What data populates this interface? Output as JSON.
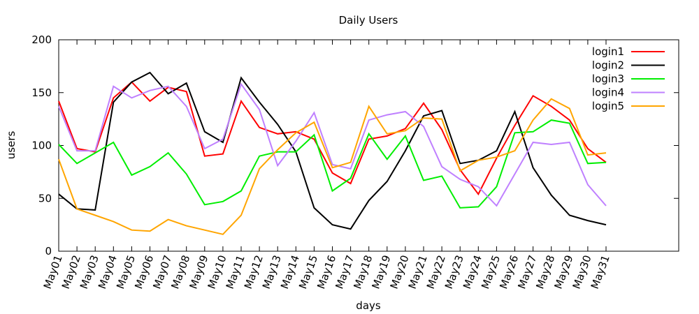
{
  "chart_data": {
    "type": "line",
    "title": "Daily Users",
    "xlabel": "days",
    "ylabel": "users",
    "ylim": [
      0,
      200
    ],
    "yticks": [
      0,
      50,
      100,
      150,
      200
    ],
    "grid": false,
    "legend_position": "top-right",
    "categories": [
      "May01",
      "May02",
      "May03",
      "May04",
      "May05",
      "May06",
      "May07",
      "May08",
      "May09",
      "May10",
      "May11",
      "May12",
      "May13",
      "May14",
      "May15",
      "May16",
      "May17",
      "May18",
      "May19",
      "May20",
      "May21",
      "May22",
      "May23",
      "May24",
      "May25",
      "May26",
      "May27",
      "May28",
      "May29",
      "May30",
      "May31"
    ],
    "series": [
      {
        "name": "login1",
        "color": "#ff0000",
        "values": [
          142,
          97,
          94,
          145,
          160,
          142,
          155,
          151,
          90,
          92,
          142,
          117,
          111,
          113,
          106,
          74,
          64,
          106,
          109,
          116,
          140,
          115,
          77,
          54,
          88,
          119,
          147,
          137,
          124,
          97,
          84
        ]
      },
      {
        "name": "login2",
        "color": "#000000",
        "values": [
          54,
          40,
          39,
          141,
          160,
          169,
          149,
          159,
          113,
          103,
          164,
          141,
          120,
          94,
          41,
          25,
          21,
          48,
          66,
          95,
          128,
          133,
          83,
          86,
          95,
          132,
          79,
          53,
          34,
          29,
          25
        ]
      },
      {
        "name": "login3",
        "color": "#00ee00",
        "values": [
          101,
          83,
          93,
          103,
          72,
          80,
          93,
          73,
          44,
          47,
          57,
          90,
          94,
          94,
          110,
          57,
          69,
          111,
          87,
          109,
          67,
          71,
          41,
          42,
          61,
          112,
          113,
          124,
          121,
          83,
          84
        ]
      },
      {
        "name": "login4",
        "color": "#bf80ff",
        "values": [
          137,
          95,
          95,
          156,
          145,
          152,
          156,
          137,
          97,
          106,
          158,
          134,
          81,
          104,
          131,
          82,
          78,
          124,
          129,
          132,
          118,
          80,
          68,
          61,
          43,
          73,
          103,
          101,
          103,
          63,
          43
        ]
      },
      {
        "name": "login5",
        "color": "#ffa500",
        "values": [
          87,
          40,
          34,
          28,
          20,
          19,
          30,
          24,
          20,
          16,
          34,
          78,
          96,
          112,
          122,
          79,
          84,
          137,
          111,
          114,
          126,
          125,
          76,
          86,
          89,
          95,
          124,
          144,
          135,
          91,
          93
        ]
      }
    ]
  }
}
